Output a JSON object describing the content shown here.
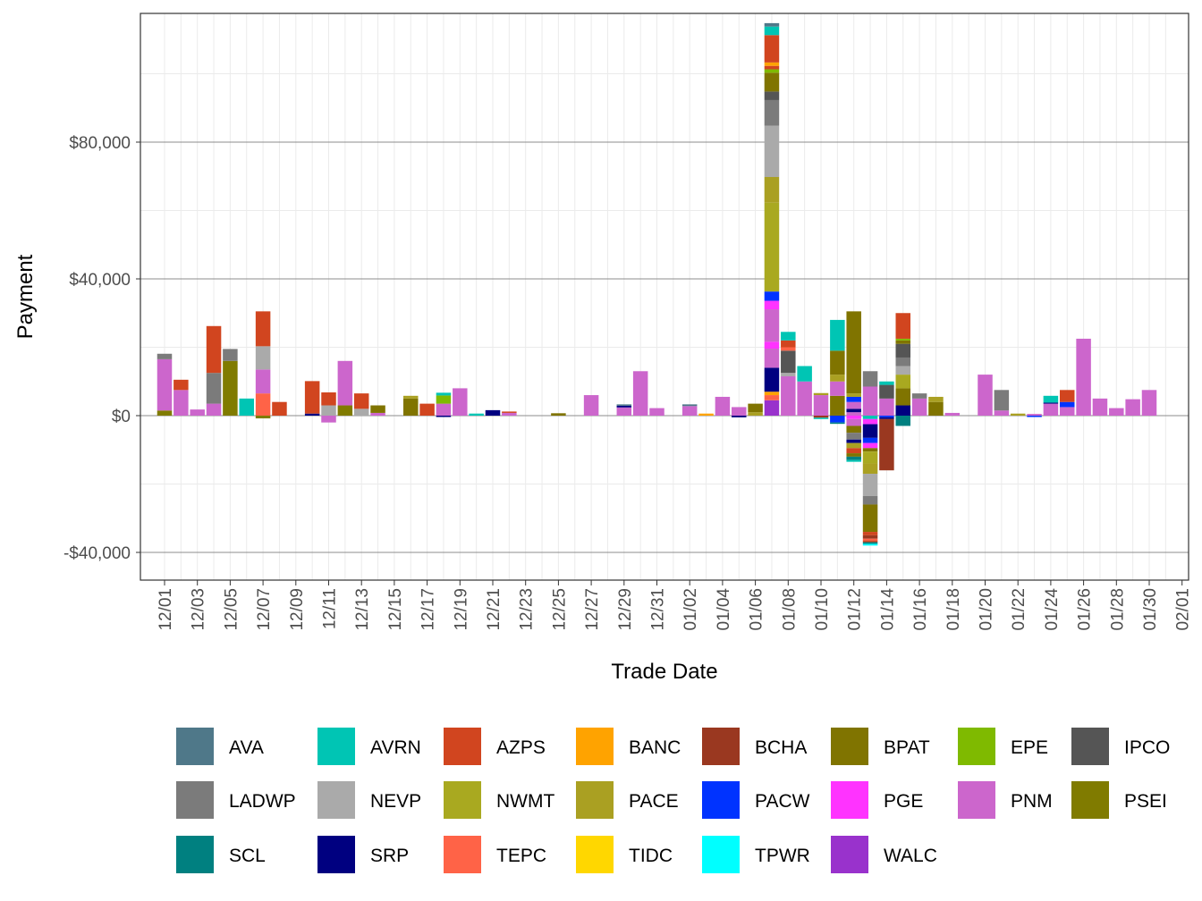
{
  "chart_data": {
    "type": "bar",
    "stacked": true,
    "xlabel": "Trade Date",
    "ylabel": "Payment",
    "ylim": [
      -48000,
      117000
    ],
    "yticks": [
      {
        "value": -40000,
        "label": "-$40,000"
      },
      {
        "value": 0,
        "label": "$0"
      },
      {
        "value": 40000,
        "label": "$40,000"
      },
      {
        "value": 80000,
        "label": "$80,000"
      }
    ],
    "x_tick_labels": [
      "12/01",
      "12/03",
      "12/05",
      "12/07",
      "12/09",
      "12/11",
      "12/13",
      "12/15",
      "12/17",
      "12/19",
      "12/21",
      "12/23",
      "12/25",
      "12/27",
      "12/29",
      "12/31",
      "01/02",
      "01/04",
      "01/06",
      "01/08",
      "01/10",
      "01/12",
      "01/14",
      "01/16",
      "01/18",
      "01/20",
      "01/22",
      "01/24",
      "01/26",
      "01/28",
      "01/30",
      "02/01"
    ],
    "days": [
      "12/01",
      "12/02",
      "12/03",
      "12/04",
      "12/05",
      "12/06",
      "12/07",
      "12/08",
      "12/09",
      "12/10",
      "12/11",
      "12/12",
      "12/13",
      "12/14",
      "12/15",
      "12/16",
      "12/17",
      "12/18",
      "12/19",
      "12/20",
      "12/21",
      "12/22",
      "12/23",
      "12/24",
      "12/25",
      "12/26",
      "12/27",
      "12/28",
      "12/29",
      "12/30",
      "12/31",
      "01/01",
      "01/02",
      "01/03",
      "01/04",
      "01/05",
      "01/06",
      "01/07",
      "01/08",
      "01/09",
      "01/10",
      "01/11",
      "01/12",
      "01/13",
      "01/14",
      "01/15",
      "01/16",
      "01/17",
      "01/18",
      "01/19",
      "01/20",
      "01/21",
      "01/22",
      "01/23",
      "01/24",
      "01/25",
      "01/26",
      "01/27",
      "01/28",
      "01/29",
      "01/30",
      "01/31"
    ],
    "legend": [
      {
        "name": "AVA",
        "color": "#4F7889"
      },
      {
        "name": "AVRN",
        "color": "#00C5B4"
      },
      {
        "name": "AZPS",
        "color": "#D1451F"
      },
      {
        "name": "BANC",
        "color": "#FFA300"
      },
      {
        "name": "BCHA",
        "color": "#9A3820"
      },
      {
        "name": "BPAT",
        "color": "#807400"
      },
      {
        "name": "EPE",
        "color": "#7FBA00"
      },
      {
        "name": "IPCO",
        "color": "#555555"
      },
      {
        "name": "LADWP",
        "color": "#7B7B7B"
      },
      {
        "name": "NEVP",
        "color": "#AAAAAA"
      },
      {
        "name": "NWMT",
        "color": "#A9A920"
      },
      {
        "name": "PACE",
        "color": "#AAA022"
      },
      {
        "name": "PACW",
        "color": "#0033FF"
      },
      {
        "name": "PGE",
        "color": "#FF33FF"
      },
      {
        "name": "PNM",
        "color": "#CC66CC"
      },
      {
        "name": "PSEI",
        "color": "#807B00"
      },
      {
        "name": "SCL",
        "color": "#008080"
      },
      {
        "name": "SRP",
        "color": "#000080"
      },
      {
        "name": "TEPC",
        "color": "#FF6347"
      },
      {
        "name": "TIDC",
        "color": "#FFD700"
      },
      {
        "name": "TPWR",
        "color": "#00FFFF"
      },
      {
        "name": "WALC",
        "color": "#9932CC"
      }
    ],
    "bars": [
      {
        "day": "12/01",
        "pos": [
          [
            "PSEI",
            1500
          ],
          [
            "PNM",
            15000
          ],
          [
            "LADWP",
            1600
          ]
        ],
        "neg": []
      },
      {
        "day": "12/02",
        "pos": [
          [
            "PNM",
            7500
          ],
          [
            "AZPS",
            3000
          ]
        ],
        "neg": []
      },
      {
        "day": "12/03",
        "pos": [
          [
            "PNM",
            1800
          ]
        ],
        "neg": []
      },
      {
        "day": "12/04",
        "pos": [
          [
            "PNM",
            3500
          ],
          [
            "LADWP",
            9000
          ],
          [
            "AZPS",
            13700
          ]
        ],
        "neg": []
      },
      {
        "day": "12/05",
        "pos": [
          [
            "PSEI",
            16000
          ],
          [
            "LADWP",
            3500
          ]
        ],
        "neg": []
      },
      {
        "day": "12/06",
        "pos": [
          [
            "AVRN",
            5000
          ]
        ],
        "neg": []
      },
      {
        "day": "12/07",
        "pos": [
          [
            "TEPC",
            6500
          ],
          [
            "PNM",
            7000
          ],
          [
            "NEVP",
            6800
          ],
          [
            "AZPS",
            10200
          ]
        ],
        "neg": [
          [
            "PSEI",
            -800
          ]
        ]
      },
      {
        "day": "12/08",
        "pos": [
          [
            "AZPS",
            4000
          ]
        ],
        "neg": []
      },
      {
        "day": "12/10",
        "pos": [
          [
            "SRP",
            600
          ],
          [
            "AZPS",
            9500
          ]
        ],
        "neg": []
      },
      {
        "day": "12/11",
        "pos": [
          [
            "NEVP",
            3000
          ],
          [
            "AZPS",
            3800
          ]
        ],
        "neg": [
          [
            "PNM",
            -2000
          ]
        ]
      },
      {
        "day": "12/12",
        "pos": [
          [
            "PSEI",
            3000
          ],
          [
            "PNM",
            13000
          ]
        ],
        "neg": []
      },
      {
        "day": "12/13",
        "pos": [
          [
            "NEVP",
            2000
          ],
          [
            "AZPS",
            4500
          ]
        ],
        "neg": []
      },
      {
        "day": "12/14",
        "pos": [
          [
            "PNM",
            800
          ],
          [
            "BPAT",
            2200
          ]
        ],
        "neg": []
      },
      {
        "day": "12/16",
        "pos": [
          [
            "BPAT",
            5000
          ],
          [
            "PACE",
            800
          ]
        ],
        "neg": []
      },
      {
        "day": "12/17",
        "pos": [
          [
            "AZPS",
            3500
          ]
        ],
        "neg": []
      },
      {
        "day": "12/18",
        "pos": [
          [
            "PNM",
            3500
          ],
          [
            "EPE",
            2400
          ],
          [
            "AVRN",
            800
          ]
        ],
        "neg": [
          [
            "SRP",
            -400
          ]
        ]
      },
      {
        "day": "12/19",
        "pos": [
          [
            "PNM",
            8000
          ]
        ],
        "neg": []
      },
      {
        "day": "12/20",
        "pos": [
          [
            "AVRN",
            600
          ]
        ],
        "neg": []
      },
      {
        "day": "12/21",
        "pos": [
          [
            "SRP",
            1600
          ]
        ],
        "neg": []
      },
      {
        "day": "12/22",
        "pos": [
          [
            "PNM",
            800
          ],
          [
            "AZPS",
            400
          ]
        ],
        "neg": []
      },
      {
        "day": "12/25",
        "pos": [
          [
            "BPAT",
            700
          ]
        ],
        "neg": []
      },
      {
        "day": "12/27",
        "pos": [
          [
            "PNM",
            6000
          ]
        ],
        "neg": []
      },
      {
        "day": "12/29",
        "pos": [
          [
            "PNM",
            2400
          ],
          [
            "SRP",
            500
          ],
          [
            "AVA",
            400
          ]
        ],
        "neg": []
      },
      {
        "day": "12/30",
        "pos": [
          [
            "PNM",
            13000
          ]
        ],
        "neg": []
      },
      {
        "day": "12/31",
        "pos": [
          [
            "PNM",
            2200
          ]
        ],
        "neg": []
      },
      {
        "day": "01/02",
        "pos": [
          [
            "PNM",
            2800
          ],
          [
            "AVA",
            500
          ]
        ],
        "neg": []
      },
      {
        "day": "01/03",
        "pos": [
          [
            "BANC",
            600
          ]
        ],
        "neg": []
      },
      {
        "day": "01/04",
        "pos": [
          [
            "PNM",
            5500
          ]
        ],
        "neg": []
      },
      {
        "day": "01/05",
        "pos": [
          [
            "PNM",
            2500
          ]
        ],
        "neg": [
          [
            "SRP",
            -500
          ]
        ]
      },
      {
        "day": "01/06",
        "pos": [
          [
            "PACE",
            1000
          ],
          [
            "BPAT",
            2500
          ]
        ],
        "neg": []
      },
      {
        "day": "01/07",
        "pos": [
          [
            "WALC",
            4500
          ],
          [
            "TEPC",
            1500
          ],
          [
            "BANC",
            1000
          ],
          [
            "SRP",
            7000
          ],
          [
            "PNM",
            5600
          ],
          [
            "PGE",
            2000
          ],
          [
            "PNM",
            9500
          ],
          [
            "PGE",
            2500
          ],
          [
            "PACW",
            2700
          ],
          [
            "NWMT",
            26000
          ],
          [
            "PACE",
            7500
          ],
          [
            "NEVP",
            15000
          ],
          [
            "LADWP",
            7500
          ],
          [
            "IPCO",
            2500
          ],
          [
            "BPAT",
            5500
          ],
          [
            "EPE",
            1000
          ],
          [
            "AZPS",
            1000
          ],
          [
            "BANC",
            1000
          ],
          [
            "AZPS",
            8000
          ],
          [
            "AVRN",
            2500
          ],
          [
            "AVA",
            1000
          ]
        ],
        "neg": []
      },
      {
        "day": "01/08",
        "pos": [
          [
            "PNM",
            11500
          ],
          [
            "NEVP",
            1000
          ],
          [
            "IPCO",
            6500
          ],
          [
            "TEPC",
            1000
          ],
          [
            "AZPS",
            2000
          ],
          [
            "AVRN",
            2500
          ]
        ],
        "neg": []
      },
      {
        "day": "01/09",
        "pos": [
          [
            "PNM",
            10000
          ],
          [
            "AVRN",
            4500
          ]
        ],
        "neg": []
      },
      {
        "day": "01/10",
        "pos": [
          [
            "PNM",
            6000
          ],
          [
            "PACE",
            600
          ]
        ],
        "neg": [
          [
            "BCHA",
            -600
          ],
          [
            "AVRN",
            -400
          ]
        ]
      },
      {
        "day": "01/11",
        "pos": [
          [
            "BPAT",
            5800
          ],
          [
            "PNM",
            4200
          ],
          [
            "PACE",
            2000
          ],
          [
            "BPAT",
            7000
          ],
          [
            "AVRN",
            9000
          ]
        ],
        "neg": [
          [
            "PACW",
            -2000
          ],
          [
            "SCL",
            -400
          ]
        ]
      },
      {
        "day": "01/12",
        "pos": [
          [
            "PNM",
            1000
          ],
          [
            "SRP",
            1000
          ],
          [
            "PNM",
            2000
          ],
          [
            "PACW",
            1500
          ],
          [
            "PACE",
            1000
          ],
          [
            "BPAT",
            24000
          ]
        ],
        "neg": [
          [
            "PGE",
            -1000
          ],
          [
            "PNM",
            -2000
          ],
          [
            "BPAT",
            -2000
          ],
          [
            "LADWP",
            -2000
          ],
          [
            "SRP",
            -1000
          ],
          [
            "PACE",
            -1500
          ],
          [
            "AZPS",
            -1500
          ],
          [
            "BPAT",
            -1000
          ],
          [
            "SCL",
            -1000
          ],
          [
            "AVRN",
            -500
          ]
        ]
      },
      {
        "day": "01/13",
        "pos": [
          [
            "PNM",
            8500
          ],
          [
            "LADWP",
            4500
          ]
        ],
        "neg": [
          [
            "AVRN",
            -1000
          ],
          [
            "PGE",
            -1500
          ],
          [
            "SRP",
            -4000
          ],
          [
            "PACW",
            -1500
          ],
          [
            "PGE",
            -1500
          ],
          [
            "BPAT",
            -1000
          ],
          [
            "NWMT",
            -3500
          ],
          [
            "PACE",
            -3000
          ],
          [
            "NEVP",
            -6500
          ],
          [
            "LADWP",
            -2500
          ],
          [
            "BPAT",
            -8000
          ],
          [
            "AZPS",
            -1000
          ],
          [
            "BCHA",
            -1000
          ],
          [
            "TEPC",
            -500
          ],
          [
            "AZPS",
            -500
          ],
          [
            "SCL",
            -500
          ],
          [
            "TPWR",
            -500
          ]
        ]
      },
      {
        "day": "01/14",
        "pos": [
          [
            "PNM",
            5000
          ],
          [
            "IPCO",
            4000
          ],
          [
            "AVRN",
            1000
          ]
        ],
        "neg": [
          [
            "PACW",
            -500
          ],
          [
            "SRP",
            -500
          ],
          [
            "BCHA",
            -15000
          ]
        ]
      },
      {
        "day": "01/15",
        "pos": [
          [
            "SRP",
            3000
          ],
          [
            "BPAT",
            5000
          ],
          [
            "NWMT",
            4000
          ],
          [
            "NEVP",
            2500
          ],
          [
            "LADWP",
            2500
          ],
          [
            "IPCO",
            4000
          ],
          [
            "BPAT",
            1000
          ],
          [
            "EPE",
            500
          ],
          [
            "AZPS",
            7500
          ]
        ],
        "neg": [
          [
            "SCL",
            -3000
          ]
        ]
      },
      {
        "day": "01/16",
        "pos": [
          [
            "PNM",
            5000
          ],
          [
            "LADWP",
            1500
          ]
        ],
        "neg": []
      },
      {
        "day": "01/17",
        "pos": [
          [
            "BPAT",
            4000
          ],
          [
            "PACE",
            1500
          ]
        ],
        "neg": []
      },
      {
        "day": "01/18",
        "pos": [
          [
            "PNM",
            800
          ]
        ],
        "neg": []
      },
      {
        "day": "01/20",
        "pos": [
          [
            "PNM",
            12000
          ]
        ],
        "neg": []
      },
      {
        "day": "01/21",
        "pos": [
          [
            "PNM",
            1500
          ],
          [
            "LADWP",
            6000
          ]
        ],
        "neg": []
      },
      {
        "day": "01/22",
        "pos": [
          [
            "PACE",
            600
          ]
        ],
        "neg": []
      },
      {
        "day": "01/23",
        "pos": [
          [
            "PNM",
            500
          ]
        ],
        "neg": [
          [
            "PACW",
            -400
          ]
        ]
      },
      {
        "day": "01/24",
        "pos": [
          [
            "PNM",
            3500
          ],
          [
            "SRP",
            300
          ],
          [
            "AVRN",
            2000
          ]
        ],
        "neg": []
      },
      {
        "day": "01/25",
        "pos": [
          [
            "PNM",
            2500
          ],
          [
            "PACW",
            1500
          ],
          [
            "AZPS",
            3500
          ]
        ],
        "neg": []
      },
      {
        "day": "01/26",
        "pos": [
          [
            "PNM",
            22500
          ]
        ],
        "neg": []
      },
      {
        "day": "01/27",
        "pos": [
          [
            "PNM",
            5000
          ]
        ],
        "neg": []
      },
      {
        "day": "01/28",
        "pos": [
          [
            "PNM",
            2200
          ]
        ],
        "neg": []
      },
      {
        "day": "01/29",
        "pos": [
          [
            "PNM",
            4800
          ]
        ],
        "neg": []
      },
      {
        "day": "01/30",
        "pos": [
          [
            "PNM",
            7500
          ]
        ],
        "neg": []
      }
    ]
  }
}
